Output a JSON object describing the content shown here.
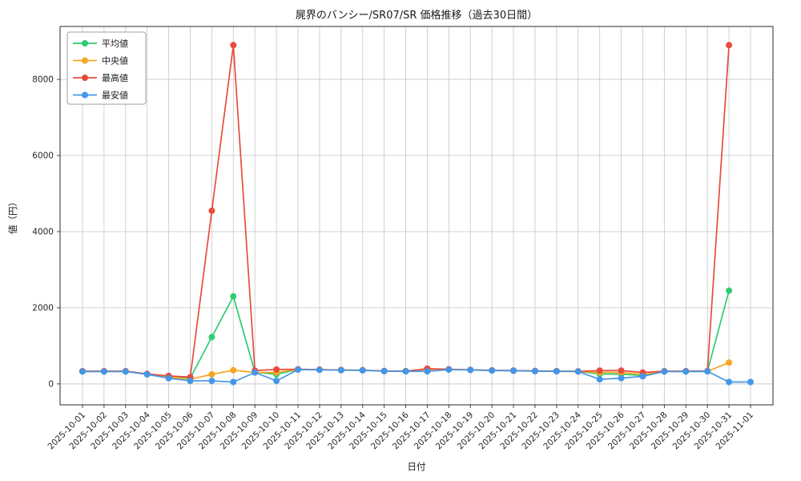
{
  "chart_data": {
    "type": "line",
    "title": "屍界のバンシー/SR07/SR 価格推移（過去30日間）",
    "xlabel": "日付",
    "ylabel": "値（円）",
    "grid": true,
    "legend_position": "upper-left",
    "yticks": [
      0,
      2000,
      4000,
      6000,
      8000
    ],
    "ylim": [
      -550,
      9390
    ],
    "x": [
      "2025-10-01",
      "2025-10-02",
      "2025-10-03",
      "2025-10-04",
      "2025-10-05",
      "2025-10-06",
      "2025-10-07",
      "2025-10-08",
      "2025-10-09",
      "2025-10-10",
      "2025-10-11",
      "2025-10-12",
      "2025-10-13",
      "2025-10-14",
      "2025-10-15",
      "2025-10-16",
      "2025-10-17",
      "2025-10-18",
      "2025-10-19",
      "2025-10-20",
      "2025-10-21",
      "2025-10-22",
      "2025-10-23",
      "2025-10-24",
      "2025-10-25",
      "2025-10-26",
      "2025-10-27",
      "2025-10-28",
      "2025-10-29",
      "2025-10-30",
      "2025-10-31",
      "2025-11-01"
    ],
    "series": [
      {
        "id": "avg",
        "name": "平均値",
        "color": "#2ecc71",
        "values": [
          330,
          330,
          330,
          260,
          200,
          150,
          1230,
          2300,
          310,
          250,
          380,
          375,
          365,
          360,
          340,
          335,
          385,
          380,
          370,
          355,
          350,
          340,
          335,
          330,
          260,
          255,
          220,
          330,
          330,
          330,
          2450,
          null
        ]
      },
      {
        "id": "median",
        "name": "中央値",
        "color": "#f5a623",
        "values": [
          330,
          330,
          330,
          255,
          185,
          120,
          250,
          360,
          300,
          300,
          380,
          375,
          365,
          360,
          340,
          335,
          380,
          380,
          370,
          355,
          350,
          340,
          335,
          330,
          300,
          300,
          250,
          330,
          330,
          330,
          560,
          null
        ]
      },
      {
        "id": "max",
        "name": "最高値",
        "color": "#e74c3c",
        "values": [
          335,
          335,
          335,
          265,
          210,
          180,
          4550,
          8900,
          350,
          380,
          385,
          375,
          365,
          360,
          340,
          335,
          400,
          385,
          370,
          355,
          350,
          340,
          335,
          330,
          350,
          350,
          300,
          335,
          335,
          340,
          8900,
          null
        ]
      },
      {
        "id": "min",
        "name": "最安値",
        "color": "#4596e8",
        "values": [
          325,
          325,
          325,
          250,
          150,
          80,
          80,
          50,
          300,
          80,
          375,
          370,
          360,
          355,
          335,
          330,
          330,
          375,
          365,
          350,
          345,
          335,
          330,
          325,
          120,
          150,
          200,
          325,
          325,
          330,
          50,
          50
        ]
      }
    ]
  }
}
